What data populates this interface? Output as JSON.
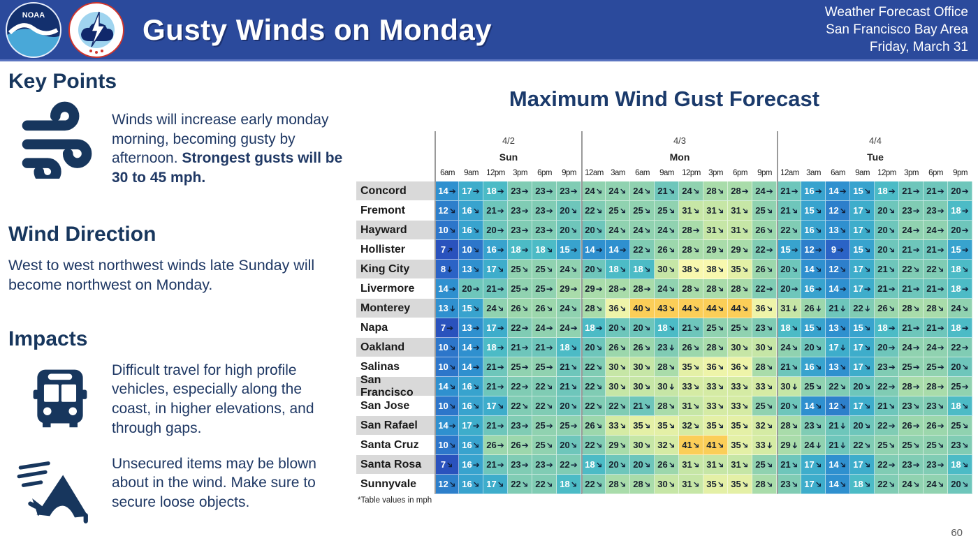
{
  "header": {
    "title": "Gusty Winds on Monday",
    "office_lines": [
      "Weather Forecast Office",
      "San Francisco Bay Area",
      "Friday, March 31"
    ],
    "bar_color": "#2b4a9c",
    "noaa_logo_label": "NOAA",
    "accent_navy": "#17365d"
  },
  "left": {
    "key_points": {
      "heading": "Key Points",
      "text": "Winds will increase early monday morning, becoming gusty by afternoon. ",
      "text_bold": "Strongest gusts will be 30 to 45 mph."
    },
    "wind_direction": {
      "heading": "Wind Direction",
      "text": "West to west northwest winds late Sunday will become northwest on Monday."
    },
    "impacts": {
      "heading": "Impacts",
      "travel_text": "Difficult travel for high profile vehicles, especially along the coast, in higher elevations, and through gaps.",
      "items_text": "Unsecured items may be blown about in the wind. Make sure to secure loose objects."
    }
  },
  "chart_data": {
    "type": "heatmap",
    "title": "Maximum Wind Gust Forecast",
    "units": "mph",
    "footnote": "*Table values in mph",
    "day_groups": [
      {
        "date": "4/2",
        "day": "Sun",
        "times": [
          "6am",
          "9am",
          "12pm",
          "3pm",
          "6pm",
          "9pm"
        ]
      },
      {
        "date": "4/3",
        "day": "Mon",
        "times": [
          "12am",
          "3am",
          "6am",
          "9am",
          "12pm",
          "3pm",
          "6pm",
          "9pm"
        ]
      },
      {
        "date": "4/4",
        "day": "Tue",
        "times": [
          "12am",
          "3am",
          "6am",
          "9am",
          "12pm",
          "3pm",
          "6pm",
          "9pm"
        ]
      }
    ],
    "rows": [
      {
        "city": "Concord",
        "values": [
          14,
          17,
          18,
          23,
          23,
          23,
          24,
          24,
          24,
          21,
          24,
          28,
          28,
          24,
          21,
          16,
          14,
          15,
          18,
          21,
          21,
          20
        ],
        "dirs": [
          "E",
          "E",
          "E",
          "E",
          "E",
          "E",
          "SE",
          "SE",
          "SE",
          "SE",
          "SE",
          "SE",
          "E",
          "E",
          "E",
          "E",
          "E",
          "SE",
          "E",
          "E",
          "E",
          "E"
        ]
      },
      {
        "city": "Fremont",
        "values": [
          12,
          16,
          21,
          23,
          23,
          20,
          22,
          25,
          25,
          25,
          31,
          31,
          31,
          25,
          21,
          15,
          12,
          17,
          20,
          23,
          23,
          18
        ],
        "dirs": [
          "SE",
          "SE",
          "E",
          "E",
          "E",
          "SE",
          "SE",
          "SE",
          "SE",
          "SE",
          "SE",
          "SE",
          "SE",
          "SE",
          "SE",
          "SE",
          "SE",
          "SE",
          "SE",
          "E",
          "E",
          "E"
        ]
      },
      {
        "city": "Hayward",
        "values": [
          10,
          16,
          20,
          23,
          23,
          20,
          20,
          24,
          24,
          24,
          28,
          31,
          31,
          26,
          22,
          16,
          13,
          17,
          20,
          24,
          24,
          20
        ],
        "dirs": [
          "SE",
          "SE",
          "E",
          "E",
          "E",
          "SE",
          "SE",
          "SE",
          "SE",
          "SE",
          "E",
          "SE",
          "SE",
          "SE",
          "SE",
          "SE",
          "SE",
          "SE",
          "SE",
          "E",
          "E",
          "E"
        ]
      },
      {
        "city": "Hollister",
        "values": [
          7,
          10,
          16,
          18,
          18,
          15,
          14,
          14,
          22,
          26,
          28,
          29,
          29,
          22,
          15,
          12,
          9,
          15,
          20,
          21,
          21,
          15
        ],
        "dirs": [
          "NE",
          "SE",
          "E",
          "E",
          "SE",
          "E",
          "E",
          "E",
          "SE",
          "SE",
          "SE",
          "SE",
          "SE",
          "E",
          "E",
          "E",
          "E",
          "SE",
          "SE",
          "E",
          "E",
          "E"
        ]
      },
      {
        "city": "King City",
        "values": [
          8,
          13,
          17,
          25,
          25,
          24,
          20,
          18,
          18,
          30,
          38,
          38,
          35,
          26,
          20,
          14,
          12,
          17,
          21,
          22,
          22,
          18
        ],
        "dirs": [
          "S",
          "SE",
          "SE",
          "SE",
          "SE",
          "SE",
          "SE",
          "SE",
          "SE",
          "SE",
          "SE",
          "SE",
          "SE",
          "SE",
          "SE",
          "SE",
          "SE",
          "SE",
          "SE",
          "SE",
          "SE",
          "SE"
        ]
      },
      {
        "city": "Livermore",
        "values": [
          14,
          20,
          21,
          25,
          25,
          29,
          29,
          28,
          28,
          24,
          28,
          28,
          28,
          22,
          20,
          16,
          14,
          17,
          21,
          21,
          21,
          18
        ],
        "dirs": [
          "E",
          "E",
          "E",
          "E",
          "E",
          "E",
          "E",
          "E",
          "E",
          "SE",
          "SE",
          "SE",
          "SE",
          "E",
          "E",
          "E",
          "E",
          "E",
          "E",
          "E",
          "E",
          "E"
        ]
      },
      {
        "city": "Monterey",
        "values": [
          13,
          15,
          24,
          26,
          26,
          24,
          28,
          36,
          40,
          43,
          44,
          44,
          44,
          36,
          31,
          26,
          21,
          22,
          26,
          28,
          28,
          24
        ],
        "dirs": [
          "S",
          "SE",
          "SE",
          "SE",
          "SE",
          "SE",
          "SE",
          "SE",
          "SE",
          "SE",
          "SE",
          "SE",
          "SE",
          "SE",
          "S",
          "S",
          "S",
          "S",
          "SE",
          "SE",
          "SE",
          "SE"
        ]
      },
      {
        "city": "Napa",
        "values": [
          7,
          13,
          17,
          22,
          24,
          24,
          18,
          20,
          20,
          18,
          21,
          25,
          25,
          23,
          18,
          15,
          13,
          15,
          18,
          21,
          21,
          18
        ],
        "dirs": [
          "E",
          "E",
          "E",
          "E",
          "E",
          "E",
          "E",
          "SE",
          "SE",
          "SE",
          "SE",
          "SE",
          "SE",
          "SE",
          "SE",
          "SE",
          "SE",
          "SE",
          "E",
          "E",
          "E",
          "E"
        ]
      },
      {
        "city": "Oakland",
        "values": [
          10,
          14,
          18,
          21,
          21,
          18,
          20,
          26,
          26,
          23,
          26,
          28,
          30,
          30,
          24,
          20,
          17,
          17,
          20,
          24,
          24,
          22
        ],
        "dirs": [
          "SE",
          "E",
          "E",
          "E",
          "E",
          "SE",
          "SE",
          "SE",
          "SE",
          "S",
          "SE",
          "SE",
          "SE",
          "SE",
          "SE",
          "SE",
          "S",
          "SE",
          "E",
          "E",
          "E",
          "E"
        ]
      },
      {
        "city": "Salinas",
        "values": [
          10,
          14,
          21,
          25,
          25,
          21,
          22,
          30,
          30,
          28,
          35,
          36,
          36,
          28,
          21,
          16,
          13,
          17,
          23,
          25,
          25,
          20
        ],
        "dirs": [
          "SE",
          "E",
          "E",
          "E",
          "E",
          "SE",
          "SE",
          "SE",
          "SE",
          "SE",
          "SE",
          "SE",
          "SE",
          "SE",
          "SE",
          "SE",
          "SE",
          "SE",
          "E",
          "E",
          "E",
          "SE"
        ]
      },
      {
        "city": "San Francisco",
        "values": [
          14,
          16,
          21,
          22,
          22,
          21,
          22,
          30,
          30,
          30,
          33,
          33,
          33,
          33,
          30,
          25,
          22,
          20,
          22,
          28,
          28,
          25
        ],
        "dirs": [
          "SE",
          "SE",
          "E",
          "E",
          "SE",
          "SE",
          "SE",
          "SE",
          "SE",
          "S",
          "SE",
          "SE",
          "SE",
          "SE",
          "S",
          "SE",
          "SE",
          "SE",
          "E",
          "E",
          "E",
          "E"
        ]
      },
      {
        "city": "San Jose",
        "values": [
          10,
          16,
          17,
          22,
          22,
          20,
          22,
          22,
          21,
          28,
          31,
          33,
          33,
          25,
          20,
          14,
          12,
          17,
          21,
          23,
          23,
          18
        ],
        "dirs": [
          "SE",
          "SE",
          "SE",
          "SE",
          "SE",
          "SE",
          "SE",
          "SE",
          "SE",
          "SE",
          "SE",
          "SE",
          "SE",
          "SE",
          "SE",
          "SE",
          "SE",
          "SE",
          "SE",
          "SE",
          "SE",
          "SE"
        ]
      },
      {
        "city": "San Rafael",
        "values": [
          14,
          17,
          21,
          23,
          25,
          25,
          26,
          33,
          35,
          35,
          32,
          35,
          35,
          32,
          28,
          23,
          21,
          20,
          22,
          26,
          26,
          25
        ],
        "dirs": [
          "E",
          "E",
          "E",
          "E",
          "E",
          "E",
          "SE",
          "SE",
          "SE",
          "SE",
          "SE",
          "SE",
          "SE",
          "SE",
          "SE",
          "SE",
          "S",
          "SE",
          "E",
          "E",
          "E",
          "SE"
        ]
      },
      {
        "city": "Santa Cruz",
        "values": [
          10,
          16,
          26,
          26,
          25,
          20,
          22,
          29,
          30,
          32,
          41,
          41,
          35,
          33,
          29,
          24,
          21,
          22,
          25,
          25,
          25,
          23
        ],
        "dirs": [
          "SE",
          "SE",
          "E",
          "E",
          "SE",
          "SE",
          "SE",
          "SE",
          "SE",
          "SE",
          "SE",
          "SE",
          "SE",
          "S",
          "S",
          "S",
          "S",
          "SE",
          "SE",
          "SE",
          "SE",
          "SE"
        ]
      },
      {
        "city": "Santa Rosa",
        "values": [
          7,
          16,
          21,
          23,
          23,
          22,
          18,
          20,
          20,
          26,
          31,
          31,
          31,
          25,
          21,
          17,
          14,
          17,
          22,
          23,
          23,
          18
        ],
        "dirs": [
          "SE",
          "E",
          "E",
          "E",
          "E",
          "E",
          "SE",
          "SE",
          "SE",
          "SE",
          "SE",
          "SE",
          "SE",
          "SE",
          "SE",
          "SE",
          "SE",
          "SE",
          "E",
          "E",
          "E",
          "SE"
        ]
      },
      {
        "city": "Sunnyvale",
        "values": [
          12,
          16,
          17,
          22,
          22,
          18,
          22,
          28,
          28,
          30,
          31,
          35,
          35,
          28,
          23,
          17,
          14,
          18,
          22,
          24,
          24,
          20
        ],
        "dirs": [
          "SE",
          "SE",
          "SE",
          "SE",
          "SE",
          "SE",
          "SE",
          "SE",
          "SE",
          "SE",
          "SE",
          "SE",
          "SE",
          "SE",
          "SE",
          "SE",
          "SE",
          "SE",
          "SE",
          "SE",
          "SE",
          "SE"
        ]
      }
    ],
    "color_scale": [
      {
        "max": 7,
        "color": "#2a52bd"
      },
      {
        "max": 9,
        "color": "#2b63c6"
      },
      {
        "max": 11,
        "color": "#2d76ca"
      },
      {
        "max": 12,
        "color": "#2d7fcb"
      },
      {
        "max": 14,
        "color": "#2f90cf"
      },
      {
        "max": 16,
        "color": "#38a3ce"
      },
      {
        "max": 17,
        "color": "#3eadcb"
      },
      {
        "max": 19,
        "color": "#4cbbc6"
      },
      {
        "max": 21,
        "color": "#6ec6bb"
      },
      {
        "max": 23,
        "color": "#80ccb4"
      },
      {
        "max": 25,
        "color": "#90d2b0"
      },
      {
        "max": 27,
        "color": "#9cd7ac"
      },
      {
        "max": 29,
        "color": "#a9dcaa"
      },
      {
        "max": 31,
        "color": "#c6e6a6"
      },
      {
        "max": 33,
        "color": "#d5eba4"
      },
      {
        "max": 35,
        "color": "#e4f0a6"
      },
      {
        "max": 37,
        "color": "#eef4a9"
      },
      {
        "max": 38,
        "color": "#f8f8ae"
      },
      {
        "max": 45,
        "color": "#fbce58"
      }
    ],
    "white_text_max": 18,
    "arrow_glyph": "➔",
    "arrow_rotations": {
      "E": 0,
      "SE": 45,
      "S": 90,
      "NE": -45
    }
  },
  "page_number": "60"
}
